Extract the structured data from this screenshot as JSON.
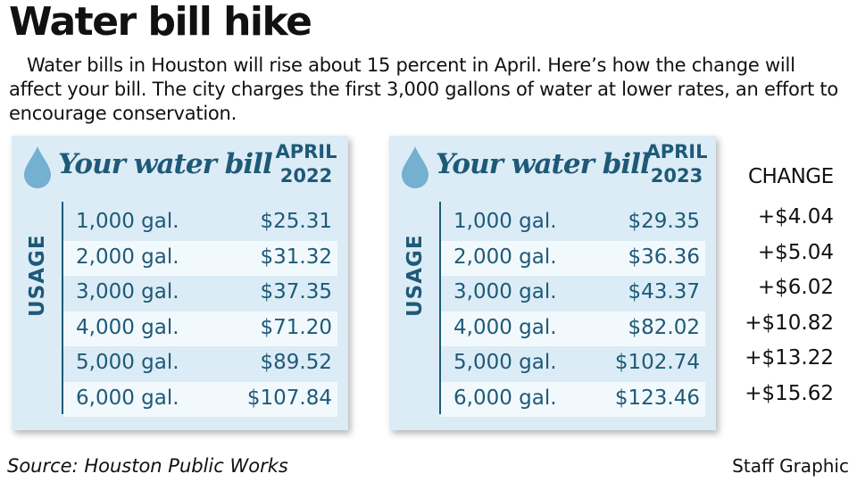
{
  "title": "Water bill hike",
  "intro": "Water bills in Houston will rise about 15 percent in April. Here’s how the change will affect your bill. The city charges the first 3,000 gallons of water at lower rates, an effort to encourage conservation.",
  "colors": {
    "accent": "#1e5a78",
    "card_bg": "#dcecf6",
    "row_alt": "#f2f9fd",
    "drop": "#74b0cf"
  },
  "icons": {
    "drop": "water-drop-icon"
  },
  "chart_data": {
    "type": "table",
    "tables": [
      {
        "heading": "Your water bill",
        "date_line1": "APRIL",
        "date_line2": "2022",
        "axis_label": "USAGE",
        "rows": [
          {
            "usage": "1,000 gal.",
            "amount": "$25.31"
          },
          {
            "usage": "2,000 gal.",
            "amount": "$31.32"
          },
          {
            "usage": "3,000 gal.",
            "amount": "$37.35"
          },
          {
            "usage": "4,000 gal.",
            "amount": "$71.20"
          },
          {
            "usage": "5,000 gal.",
            "amount": "$89.52"
          },
          {
            "usage": "6,000 gal.",
            "amount": "$107.84"
          }
        ]
      },
      {
        "heading": "Your water bill",
        "date_line1": "APRIL",
        "date_line2": "2023",
        "axis_label": "USAGE",
        "rows": [
          {
            "usage": "1,000 gal.",
            "amount": "$29.35"
          },
          {
            "usage": "2,000 gal.",
            "amount": "$36.36"
          },
          {
            "usage": "3,000 gal.",
            "amount": "$43.37"
          },
          {
            "usage": "4,000 gal.",
            "amount": "$82.02"
          },
          {
            "usage": "5,000 gal.",
            "amount": "$102.74"
          },
          {
            "usage": "6,000 gal.",
            "amount": "$123.46"
          }
        ]
      }
    ],
    "change": {
      "header": "CHANGE",
      "values": [
        "+$4.04",
        "+$5.04",
        "+$6.02",
        "+$10.82",
        "+$13.22",
        "+$15.62"
      ]
    }
  },
  "source": "Source: Houston Public Works",
  "credit": "Staff Graphic"
}
